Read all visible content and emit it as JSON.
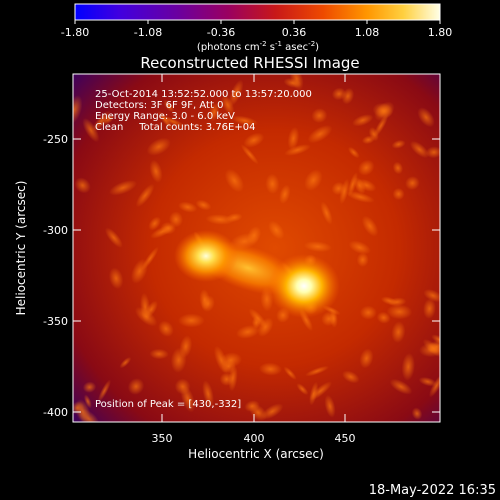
{
  "colorbar": {
    "tick_labels": [
      "-1.80",
      "-1.08",
      "-0.36",
      "0.36",
      "1.08",
      "1.80"
    ],
    "units_text": "(photons cm",
    "units_exp1": "-2",
    "units_mid1": " s",
    "units_exp2": "-1",
    "units_mid2": " asec",
    "units_exp3": "-2",
    "units_end": ")",
    "colors": [
      "#0000ff",
      "#5a00c8",
      "#7a0088",
      "#a0005a",
      "#c0101e",
      "#e04000",
      "#ff7a00",
      "#ffb400",
      "#ffe45a",
      "#ffffe6"
    ]
  },
  "title": "Reconstructed RHESSI Image",
  "info_lines": [
    "25-Oct-2014 13:52:52.000 to 13:57:20.000",
    "Detectors: 3F 6F 9F, Att 0",
    "Energy Range: 3.0 - 6.0 keV",
    "Clean     Total counts: 3.76E+04"
  ],
  "peak_text": "Position of Peak = [430,-332]",
  "x_axis": {
    "label": "Heliocentric X (arcsec)",
    "ticks": [
      "350",
      "400",
      "450"
    ]
  },
  "y_axis": {
    "label": "Heliocentric Y (arcsec)",
    "ticks": [
      "-250",
      "-300",
      "-350",
      "-400"
    ]
  },
  "timestamp": "18-May-2022 16:35"
}
